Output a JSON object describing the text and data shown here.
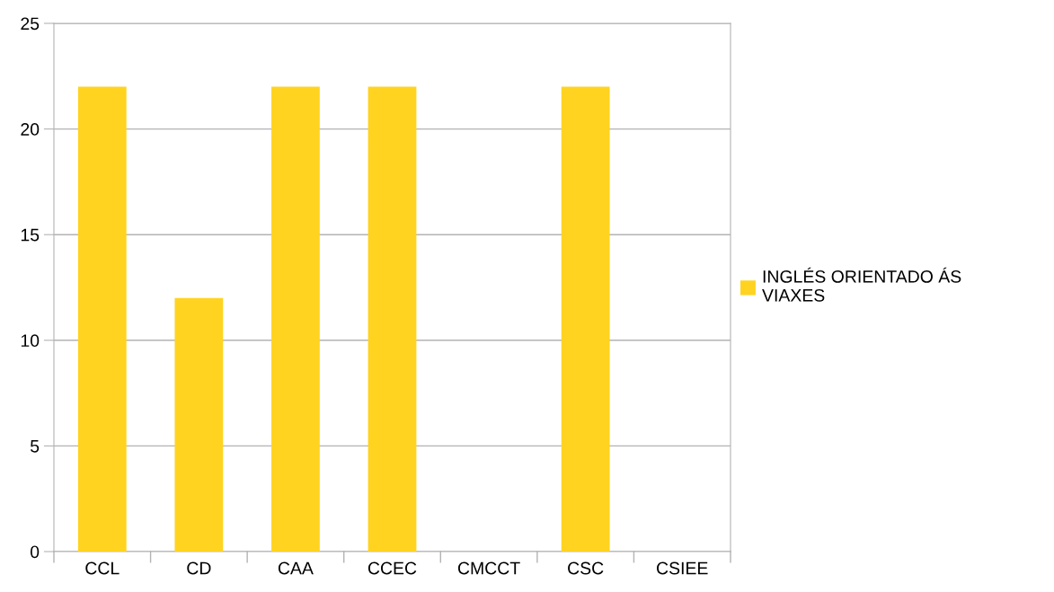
{
  "chart_data": {
    "type": "bar",
    "categories": [
      "CCL",
      "CD",
      "CAA",
      "CCEC",
      "CMCCT",
      "CSC",
      "CSIEE"
    ],
    "series": [
      {
        "name": "INGLÉS ORIENTADO ÁS VIAXES",
        "color": "#ffd320",
        "values": [
          22,
          12,
          22,
          22,
          0,
          22,
          0
        ]
      }
    ],
    "ylim": [
      0,
      25
    ],
    "yticks": [
      0,
      5,
      10,
      15,
      20,
      25
    ],
    "grid": "y",
    "legend": "right"
  }
}
